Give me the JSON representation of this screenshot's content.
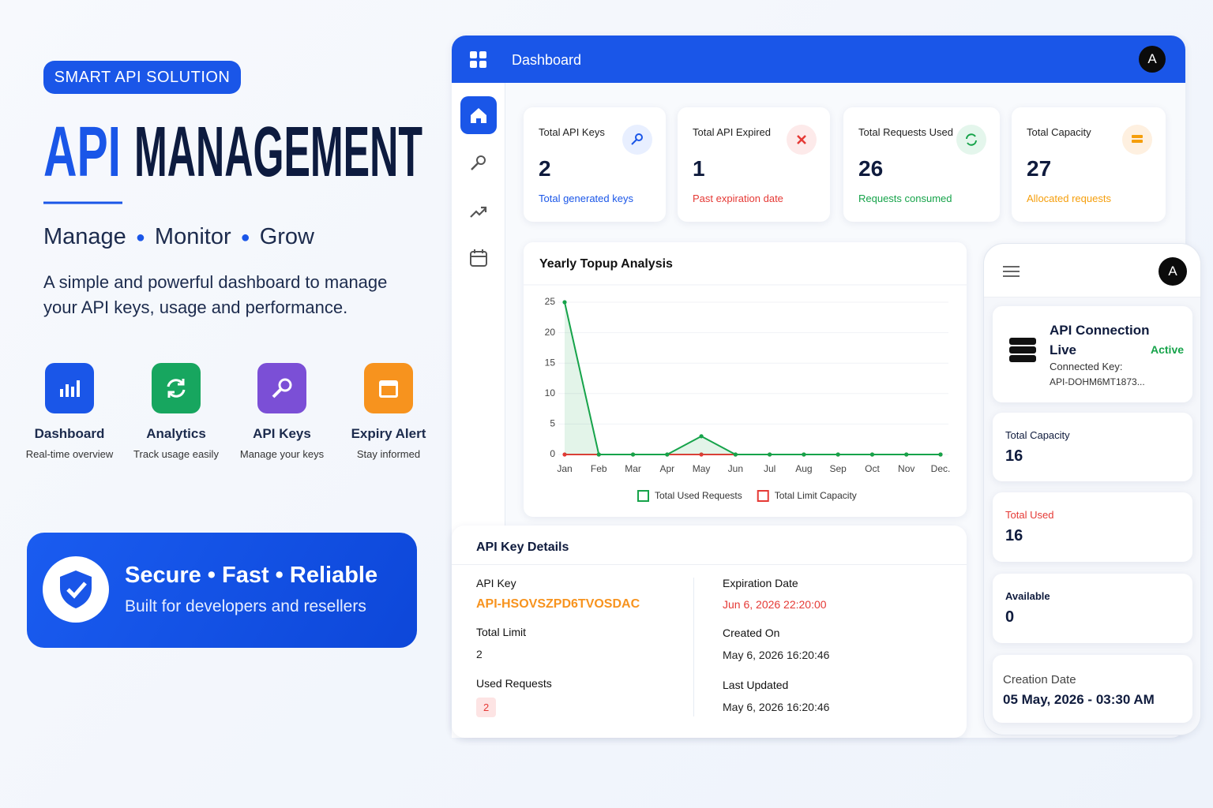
{
  "hero": {
    "badge": "SMART API SOLUTION",
    "title_accent": "API",
    "title": "MANAGEMENT",
    "tagline": [
      "Manage",
      "Monitor",
      "Grow"
    ],
    "description": [
      "A simple and powerful dashboard to manage",
      "your API keys, usage and performance."
    ]
  },
  "features": [
    {
      "title": "Dashboard",
      "subtitle": "Real-time overview"
    },
    {
      "title": "Analytics",
      "subtitle": "Track usage easily"
    },
    {
      "title": "API Keys",
      "subtitle": "Manage your keys"
    },
    {
      "title": "Expiry Alert",
      "subtitle": "Stay informed"
    }
  ],
  "banner": {
    "title": "Secure • Fast • Reliable",
    "subtitle": "Built for developers and resellers"
  },
  "dashboard": {
    "header": "Dashboard",
    "avatar": "A",
    "stats": [
      {
        "label": "Total API Keys",
        "value": 2,
        "note": "Total generated keys"
      },
      {
        "label": "Total API Expired",
        "value": 1,
        "note": "Past expiration date"
      },
      {
        "label": "Total Requests Used",
        "value": 26,
        "note": "Requests consumed"
      },
      {
        "label": "Total Capacity",
        "value": 27,
        "note": "Allocated requests"
      }
    ]
  },
  "chart_data": {
    "type": "line",
    "title": "Yearly Topup Analysis",
    "categories": [
      "Jan",
      "Feb",
      "Mar",
      "Apr",
      "May",
      "Jun",
      "Jul",
      "Aug",
      "Sep",
      "Oct",
      "Nov",
      "Dec."
    ],
    "series": [
      {
        "name": "Total Used Requests",
        "color": "#16a34a",
        "values": [
          25,
          0,
          0,
          0,
          3,
          0,
          0,
          0,
          0,
          0,
          0,
          0
        ]
      },
      {
        "name": "Total Limit Capacity",
        "color": "#e53935",
        "values": [
          0,
          0,
          0,
          0,
          0,
          0,
          0,
          0,
          0,
          0,
          0,
          0
        ]
      }
    ],
    "ylim": [
      0,
      25
    ],
    "yticks": [
      0,
      5,
      10,
      15,
      20,
      25
    ],
    "grid": true
  },
  "details": {
    "title": "API Key Details",
    "left": [
      {
        "label": "API Key",
        "value": "API-HSOVSZPD6TVOSDAC"
      },
      {
        "label": "Total Limit",
        "value": 2
      },
      {
        "label": "Used Requests",
        "value": 2
      }
    ],
    "right": [
      {
        "label": "Expiration Date",
        "value": "Jun 6, 2026 22:20:00"
      },
      {
        "label": "Created On",
        "value": "May 6, 2026 16:20:46"
      },
      {
        "label": "Last Updated",
        "value": "May 6, 2026 16:20:46"
      }
    ]
  },
  "mobile": {
    "avatar": "A",
    "connection": {
      "title": "API Connection Live",
      "status": "Active",
      "key_label": "Connected Key:",
      "key": "API-DOHM6MT1873..."
    },
    "cards": [
      {
        "label": "Total Capacity",
        "value": 16
      },
      {
        "label": "Total Used",
        "value": 16
      },
      {
        "label": "Available",
        "value": 0
      }
    ],
    "creation": {
      "label": "Creation Date",
      "value": "05 May, 2026 - 03:30 AM"
    }
  }
}
